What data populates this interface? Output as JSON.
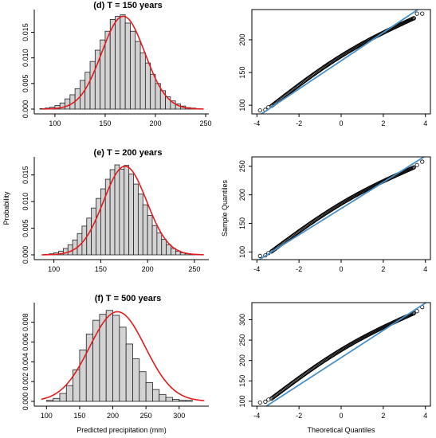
{
  "chart_data": [
    {
      "type": "bar",
      "title": "(d) T = 150 years",
      "ylabel": "",
      "xlabel": "",
      "xlim": [
        85,
        250
      ],
      "ylim": [
        0,
        0.0185
      ],
      "xticks": [
        100,
        150,
        200,
        250
      ],
      "yticks": [
        0.0,
        0.005,
        0.01,
        0.015
      ],
      "ytick_labels": [
        "0.000",
        "0.005",
        "0.010",
        "0.015"
      ],
      "bin_width": 5,
      "bin_start": 85,
      "values": [
        0.0001,
        0.0002,
        0.0004,
        0.0007,
        0.0012,
        0.002,
        0.0028,
        0.004,
        0.0056,
        0.0072,
        0.0093,
        0.0115,
        0.0135,
        0.0152,
        0.0175,
        0.0181,
        0.0184,
        0.0168,
        0.0152,
        0.0132,
        0.011,
        0.009,
        0.0068,
        0.005,
        0.0036,
        0.0024,
        0.0016,
        0.001,
        0.0006,
        0.0003,
        0.0002,
        0.0001
      ],
      "density_curve": {
        "color": "#e41a1c",
        "mean": 168,
        "sd": 21.5
      }
    },
    {
      "type": "scatter",
      "subtype": "qq",
      "title": "",
      "xlabel": "",
      "ylabel": "",
      "xlim": [
        -4.2,
        4.2
      ],
      "ylim": [
        88,
        245
      ],
      "xticks": [
        -4,
        -2,
        0,
        2,
        4
      ],
      "yticks": [
        100,
        150,
        200
      ],
      "line": {
        "intercept": 168,
        "slope": 21.5,
        "color": "#4a90c8"
      },
      "tail_points": [
        [
          -3.85,
          92
        ],
        [
          -3.6,
          93
        ],
        [
          -3.45,
          97
        ],
        [
          -3.3,
          99
        ],
        [
          3.45,
          233
        ],
        [
          3.6,
          240
        ],
        [
          3.85,
          240
        ]
      ]
    },
    {
      "type": "bar",
      "title": "(e) T = 200 years",
      "ylabel": "Probability",
      "xlabel": "",
      "xlim": [
        85,
        262
      ],
      "ylim": [
        0,
        0.0175
      ],
      "xticks": [
        100,
        150,
        200,
        250
      ],
      "yticks": [
        0.0,
        0.005,
        0.01,
        0.015
      ],
      "ytick_labels": [
        "0.000",
        "0.005",
        "0.010",
        "0.015"
      ],
      "bin_width": 5,
      "bin_start": 90,
      "values": [
        0.0001,
        0.0002,
        0.0004,
        0.0007,
        0.0012,
        0.0019,
        0.0028,
        0.004,
        0.0054,
        0.0069,
        0.0088,
        0.0106,
        0.0124,
        0.0142,
        0.016,
        0.0169,
        0.0161,
        0.0168,
        0.0152,
        0.0133,
        0.0114,
        0.0094,
        0.0074,
        0.0055,
        0.0041,
        0.0029,
        0.0019,
        0.0012,
        0.0007,
        0.0004,
        0.0002,
        0.0001,
        0.0001
      ],
      "density_curve": {
        "color": "#e41a1c",
        "mean": 176,
        "sd": 23
      }
    },
    {
      "type": "scatter",
      "subtype": "qq",
      "title": "",
      "xlabel": "",
      "ylabel": "Sample Quantiles",
      "xlim": [
        -4.2,
        4.2
      ],
      "ylim": [
        88,
        265
      ],
      "xticks": [
        -4,
        -2,
        0,
        2,
        4
      ],
      "yticks": [
        100,
        150,
        200,
        250
      ],
      "line": {
        "intercept": 176,
        "slope": 23,
        "color": "#4a90c8"
      },
      "tail_points": [
        [
          -3.85,
          93
        ],
        [
          -3.6,
          94
        ],
        [
          -3.45,
          98
        ],
        [
          -3.3,
          101
        ],
        [
          3.45,
          248
        ],
        [
          3.6,
          252
        ],
        [
          3.85,
          258
        ]
      ]
    },
    {
      "type": "bar",
      "title": "(f) T = 500 years",
      "ylabel": "",
      "xlabel": "Predicted precipitation (mm)",
      "xlim": [
        90,
        340
      ],
      "ylim": [
        0,
        0.0095
      ],
      "xticks": [
        100,
        150,
        200,
        250,
        300
      ],
      "yticks": [
        0.0,
        0.002,
        0.004,
        0.006,
        0.008
      ],
      "ytick_labels": [
        "0.000",
        "0.002",
        "0.004",
        "0.006",
        "0.008"
      ],
      "bin_width": 10,
      "bin_start": 100,
      "values": [
        0.0001,
        0.0003,
        0.0008,
        0.0016,
        0.0032,
        0.0052,
        0.0068,
        0.0082,
        0.0088,
        0.0092,
        0.0087,
        0.0075,
        0.0058,
        0.0043,
        0.003,
        0.0019,
        0.0012,
        0.0007,
        0.0004,
        0.0002,
        0.0001,
        0.0001
      ],
      "density_curve": {
        "color": "#e41a1c",
        "mean": 207,
        "sd": 42
      }
    },
    {
      "type": "scatter",
      "subtype": "qq",
      "title": "",
      "xlabel": "Theoretical Quantiles",
      "ylabel": "",
      "xlim": [
        -4.2,
        4.2
      ],
      "ylim": [
        90,
        340
      ],
      "xticks": [
        -4,
        -2,
        0,
        2,
        4
      ],
      "yticks": [
        100,
        150,
        200,
        250,
        300
      ],
      "line": {
        "intercept": 207,
        "slope": 33.5,
        "color": "#4a90c8"
      },
      "tail_points": [
        [
          -3.85,
          97
        ],
        [
          -3.6,
          99
        ],
        [
          -3.45,
          104
        ],
        [
          -3.3,
          107
        ],
        [
          3.45,
          316
        ],
        [
          3.6,
          321
        ],
        [
          3.85,
          331
        ]
      ]
    }
  ]
}
